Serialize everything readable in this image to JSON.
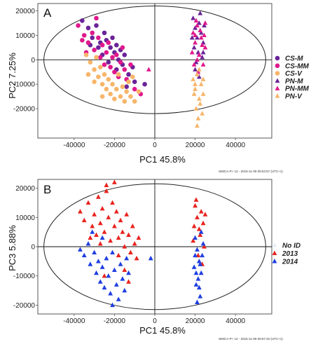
{
  "chart_data": [
    {
      "type": "scatter",
      "panel_label": "A",
      "xlabel": "PC1  45.8%",
      "ylabel": "PC2  7.25%",
      "xlim": [
        -58000,
        58000
      ],
      "ylim": [
        -32000,
        23000
      ],
      "x_ticks": [
        -40000,
        -20000,
        0,
        20000,
        40000
      ],
      "y_ticks": [
        -20000,
        -10000,
        0,
        10000,
        20000
      ],
      "x_tick_labels": [
        "-40000",
        "-20000",
        "0",
        "20000",
        "40000"
      ],
      "y_tick_labels": [
        "-20000",
        "-10000",
        "0",
        "10000",
        "20000"
      ],
      "ellipse": {
        "cx": 0,
        "cy": 0,
        "rx": 55000,
        "ry": 22000
      },
      "legend_position": "right",
      "footer": "SIMCA-P+ 12 - 2015-11-09 09:53:57 (UTC+1)",
      "series": [
        {
          "name": "CS-M",
          "marker": "circle",
          "color": "#6a2398",
          "points": [
            [
              -36000,
              16000
            ],
            [
              -33000,
              13000
            ],
            [
              -31000,
              9000
            ],
            [
              -29000,
              14000
            ],
            [
              -27000,
              7000
            ],
            [
              -25000,
              11000
            ],
            [
              -24000,
              8000
            ],
            [
              -22000,
              5000
            ],
            [
              -21000,
              9000
            ],
            [
              -20000,
              3000
            ],
            [
              -19000,
              6000
            ],
            [
              -18000,
              0
            ],
            [
              -17000,
              4000
            ],
            [
              -16000,
              -2000
            ],
            [
              -15000,
              2000
            ],
            [
              -13000,
              -6000
            ],
            [
              -11000,
              -3000
            ],
            [
              -28000,
              5000
            ],
            [
              -26000,
              2000
            ],
            [
              -23000,
              -1000
            ],
            [
              -32000,
              6000
            ],
            [
              -19000,
              -4000
            ],
            [
              -5000,
              -10000
            ],
            [
              -10000,
              -9000
            ],
            [
              -14000,
              -11000
            ]
          ]
        },
        {
          "name": "CS-MM",
          "marker": "circle",
          "color": "#e0188c",
          "points": [
            [
              -38000,
              14000
            ],
            [
              -35000,
              10000
            ],
            [
              -33000,
              7000
            ],
            [
              -31000,
              11000
            ],
            [
              -30000,
              4000
            ],
            [
              -28000,
              9000
            ],
            [
              -27000,
              1000
            ],
            [
              -26000,
              6000
            ],
            [
              -25000,
              -2000
            ],
            [
              -24000,
              3000
            ],
            [
              -23000,
              7000
            ],
            [
              -22000,
              -3000
            ],
            [
              -21000,
              1000
            ],
            [
              -20000,
              -5000
            ],
            [
              -19000,
              2000
            ],
            [
              -18000,
              -7000
            ],
            [
              -17000,
              -1000
            ],
            [
              -16000,
              5000
            ],
            [
              -15000,
              -4000
            ],
            [
              -14000,
              -8000
            ],
            [
              -12000,
              -2000
            ],
            [
              -10000,
              -12000
            ],
            [
              -7000,
              -14000
            ],
            [
              -29000,
              17000
            ],
            [
              -34000,
              3000
            ],
            [
              -36000,
              8000
            ]
          ]
        },
        {
          "name": "CS-V",
          "marker": "circle",
          "color": "#f7b56a",
          "points": [
            [
              -34000,
              2000
            ],
            [
              -32000,
              -1000
            ],
            [
              -30000,
              -4000
            ],
            [
              -29000,
              1000
            ],
            [
              -28000,
              -7000
            ],
            [
              -27000,
              -3000
            ],
            [
              -26000,
              -10000
            ],
            [
              -25000,
              -6000
            ],
            [
              -24000,
              -12000
            ],
            [
              -23000,
              -8000
            ],
            [
              -22000,
              -14000
            ],
            [
              -21000,
              -10000
            ],
            [
              -20000,
              -16000
            ],
            [
              -19000,
              -12000
            ],
            [
              -18000,
              -6000
            ],
            [
              -17000,
              -15000
            ],
            [
              -16000,
              -11000
            ],
            [
              -15000,
              -17000
            ],
            [
              -14000,
              -13000
            ],
            [
              -13000,
              -9000
            ],
            [
              -12000,
              -15000
            ],
            [
              -11000,
              -7000
            ],
            [
              -10000,
              -17000
            ],
            [
              -8000,
              -13000
            ],
            [
              -30000,
              -9000
            ],
            [
              -33000,
              -6000
            ],
            [
              -26000,
              -15000
            ]
          ]
        },
        {
          "name": "PN-M",
          "marker": "triangle",
          "color": "#6a2398",
          "points": [
            [
              19000,
              17000
            ],
            [
              20000,
              13000
            ],
            [
              21000,
              9000
            ],
            [
              22000,
              15000
            ],
            [
              23000,
              11000
            ],
            [
              24000,
              7000
            ],
            [
              19500,
              5000
            ],
            [
              21500,
              3000
            ],
            [
              23500,
              1000
            ],
            [
              20500,
              -1000
            ],
            [
              22500,
              19000
            ],
            [
              24500,
              14000
            ],
            [
              18500,
              9000
            ],
            [
              20000,
              -4000
            ],
            [
              22000,
              -7000
            ],
            [
              24000,
              3000
            ]
          ]
        },
        {
          "name": "PN-MM",
          "marker": "triangle",
          "color": "#e0188c",
          "points": [
            [
              19000,
              11000
            ],
            [
              20000,
              7000
            ],
            [
              21000,
              14000
            ],
            [
              22000,
              2000
            ],
            [
              23000,
              9000
            ],
            [
              24000,
              -2000
            ],
            [
              25000,
              5000
            ],
            [
              20500,
              16000
            ],
            [
              22500,
              12000
            ],
            [
              24500,
              10000
            ],
            [
              19500,
              -2000
            ],
            [
              21500,
              -5000
            ],
            [
              23500,
              6000
            ],
            [
              18500,
              3000
            ],
            [
              21000,
              0
            ],
            [
              25000,
              15000
            ],
            [
              20000,
              10000
            ],
            [
              -3000,
              -4000
            ]
          ]
        },
        {
          "name": "PN-V",
          "marker": "triangle",
          "color": "#f7b56a",
          "points": [
            [
              19000,
              -8000
            ],
            [
              20000,
              -12000
            ],
            [
              21000,
              -6000
            ],
            [
              22000,
              -16000
            ],
            [
              23000,
              -10000
            ],
            [
              24000,
              -14000
            ],
            [
              20500,
              -20000
            ],
            [
              22500,
              -18000
            ],
            [
              21500,
              -24000
            ],
            [
              23500,
              -22000
            ],
            [
              19500,
              -14000
            ],
            [
              22000,
              -4000
            ],
            [
              24000,
              -8000
            ],
            [
              21000,
              -27000
            ],
            [
              20000,
              -10000
            ]
          ]
        }
      ]
    },
    {
      "type": "scatter",
      "panel_label": "B",
      "xlabel": "PC1  45.8%",
      "ylabel": "PC3  5.88%",
      "xlim": [
        -58000,
        58000
      ],
      "ylim": [
        -23000,
        23000
      ],
      "x_ticks": [
        -40000,
        -20000,
        0,
        20000,
        40000
      ],
      "y_ticks": [
        -20000,
        -10000,
        0,
        10000,
        20000
      ],
      "x_tick_labels": [
        "-40000",
        "-20000",
        "0",
        "20000",
        "40000"
      ],
      "y_tick_labels": [
        "-20000",
        "-10000",
        "0",
        "10000",
        "20000"
      ],
      "ellipse": {
        "cx": 0,
        "cy": 0,
        "rx": 55000,
        "ry": 21500
      },
      "legend_position": "right",
      "footer": "SIMCA-P+ 12 - 2015-11-09 09:57:40 (UTC+1)",
      "series": [
        {
          "name": "No ID",
          "marker": "triangle",
          "color": "#e8eef7",
          "points": []
        },
        {
          "name": "2013",
          "marker": "triangle",
          "color": "#e8231e",
          "points": [
            [
              -37000,
              12000
            ],
            [
              -35000,
              9000
            ],
            [
              -33000,
              15000
            ],
            [
              -31000,
              7000
            ],
            [
              -30000,
              11000
            ],
            [
              -29000,
              4000
            ],
            [
              -28000,
              17000
            ],
            [
              -27000,
              8000
            ],
            [
              -26000,
              13000
            ],
            [
              -25000,
              5000
            ],
            [
              -24000,
              19000
            ],
            [
              -23000,
              10000
            ],
            [
              -22000,
              2000
            ],
            [
              -21000,
              15000
            ],
            [
              -20000,
              7000
            ],
            [
              -19000,
              12000
            ],
            [
              -18000,
              3000
            ],
            [
              -17000,
              9000
            ],
            [
              -16000,
              5000
            ],
            [
              -15000,
              0
            ],
            [
              -14000,
              11000
            ],
            [
              -13000,
              4000
            ],
            [
              -12000,
              -2000
            ],
            [
              -11000,
              7000
            ],
            [
              -10000,
              1000
            ],
            [
              -9000,
              -4000
            ],
            [
              -8000,
              3000
            ],
            [
              -24000,
              21000
            ],
            [
              -20000,
              22000
            ],
            [
              -27000,
              1000
            ],
            [
              -32000,
              3000
            ],
            [
              -18000,
              -3000
            ],
            [
              -15000,
              -8000
            ],
            [
              -13000,
              -12000
            ],
            [
              -25000,
              -10000
            ],
            [
              20000,
              14000
            ],
            [
              21000,
              10000
            ],
            [
              22000,
              6000
            ],
            [
              23000,
              12000
            ],
            [
              24000,
              8000
            ],
            [
              19000,
              2000
            ],
            [
              20500,
              16000
            ],
            [
              22500,
              4000
            ],
            [
              24500,
              0
            ],
            [
              21500,
              -3000
            ],
            [
              23500,
              -6000
            ],
            [
              19500,
              7000
            ],
            [
              25000,
              11000
            ]
          ]
        },
        {
          "name": "2014",
          "marker": "triangle",
          "color": "#1f3ee0",
          "points": [
            [
              -37000,
              -1000
            ],
            [
              -35000,
              -3000
            ],
            [
              -33000,
              1000
            ],
            [
              -32000,
              -6000
            ],
            [
              -30000,
              -2000
            ],
            [
              -29000,
              -9000
            ],
            [
              -28000,
              -5000
            ],
            [
              -27000,
              -12000
            ],
            [
              -26000,
              -7000
            ],
            [
              -25000,
              -14000
            ],
            [
              -24000,
              -4000
            ],
            [
              -23000,
              -10000
            ],
            [
              -22000,
              -16000
            ],
            [
              -21000,
              -2000
            ],
            [
              -20000,
              -8000
            ],
            [
              -19000,
              -13000
            ],
            [
              -18000,
              -18000
            ],
            [
              -17000,
              -6000
            ],
            [
              -16000,
              -11000
            ],
            [
              -15000,
              -15000
            ],
            [
              -14000,
              -4000
            ],
            [
              -13000,
              -9000
            ],
            [
              -31000,
              5000
            ],
            [
              -26000,
              3000
            ],
            [
              -21000,
              -20000
            ],
            [
              -2000,
              -4000
            ],
            [
              20000,
              3000
            ],
            [
              21000,
              -1000
            ],
            [
              22000,
              -5000
            ],
            [
              23000,
              -9000
            ],
            [
              20500,
              -13000
            ],
            [
              22500,
              -17000
            ],
            [
              21500,
              -11000
            ],
            [
              19500,
              -7000
            ],
            [
              23500,
              -3000
            ],
            [
              24000,
              1000
            ],
            [
              20000,
              -3000
            ],
            [
              22000,
              -14000
            ],
            [
              21000,
              -19000
            ],
            [
              23000,
              5000
            ],
            [
              20500,
              -9000
            ],
            [
              22500,
              -6000
            ]
          ]
        }
      ]
    }
  ]
}
